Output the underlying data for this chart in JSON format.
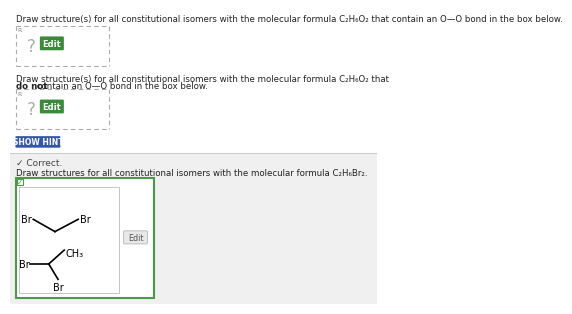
{
  "title1": "Draw structure(s) for all constitutional isomers with the molecular formula C₂H₆O₂ that contain an O—O bond in the box below.",
  "title2a": "Draw structure(s) for all constitutional isomers with the molecular formula C₂H₆O₂ that",
  "title2_bold": "do not",
  "title2b": " contain an O—O bond in the box below.",
  "title3": "Draw structures for all constitutional isomers with the molecular formula C₂H₆Br₂.",
  "show_hint_label": "SHOW HINT",
  "correct_label": "✓ Correct.",
  "edit_label": "Edit",
  "white": "#ffffff",
  "green_border": "#4a9a4a",
  "green_btn": "#3a8a3a",
  "blue_btn": "#3355aa",
  "text_color": "#222222",
  "dashed_border": "#aaaaaa",
  "gray_bg": "#f0f0f0",
  "light_gray": "#e8e8e8"
}
